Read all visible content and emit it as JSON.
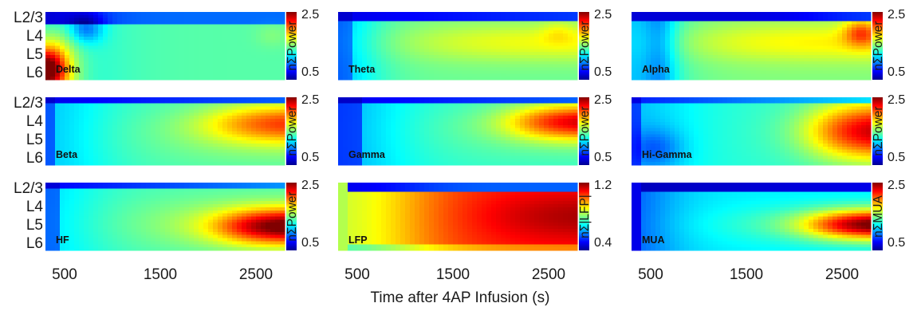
{
  "figure": {
    "xlabel": "Time after 4AP Infusion (s)",
    "layers": [
      "L2/3",
      "L4",
      "L5",
      "L6"
    ],
    "x_ticks": [
      "500",
      "1500",
      "2500"
    ],
    "x_tick_values": [
      500,
      1500,
      2500
    ],
    "x_range_s": [
      300,
      2800
    ],
    "colormap": "jet",
    "colormap_stops": [
      "#00008f",
      "#0000ff",
      "#0080ff",
      "#00ffff",
      "#80ff80",
      "#ffff00",
      "#ff8000",
      "#ff0000",
      "#800000"
    ]
  },
  "chart_data": [
    {
      "type": "heatmap",
      "label": "Delta",
      "colorbar_label": "nΣPower",
      "colorbar_ticks": [
        "2.5",
        "0.5"
      ],
      "clim": [
        0.5,
        2.5
      ],
      "rows": [
        "L2/3",
        "L4",
        "L5",
        "L6"
      ],
      "x_range_s": [
        300,
        2800
      ],
      "pattern": "delta"
    },
    {
      "type": "heatmap",
      "label": "Theta",
      "colorbar_label": "nΣPower",
      "colorbar_ticks": [
        "2.5",
        "0.5"
      ],
      "clim": [
        0.5,
        2.5
      ],
      "rows": [
        "L2/3",
        "L4",
        "L5",
        "L6"
      ],
      "x_range_s": [
        300,
        2800
      ],
      "pattern": "theta"
    },
    {
      "type": "heatmap",
      "label": "Alpha",
      "colorbar_label": "nΣPower",
      "colorbar_ticks": [
        "2.5",
        "0.5"
      ],
      "clim": [
        0.5,
        2.5
      ],
      "rows": [
        "L2/3",
        "L4",
        "L5",
        "L6"
      ],
      "x_range_s": [
        300,
        2800
      ],
      "pattern": "alpha"
    },
    {
      "type": "heatmap",
      "label": "Beta",
      "colorbar_label": "nΣPower",
      "colorbar_ticks": [
        "2.5",
        "0.5"
      ],
      "clim": [
        0.5,
        2.5
      ],
      "rows": [
        "L2/3",
        "L4",
        "L5",
        "L6"
      ],
      "x_range_s": [
        300,
        2800
      ],
      "pattern": "beta"
    },
    {
      "type": "heatmap",
      "label": "Gamma",
      "colorbar_label": "nΣPower",
      "colorbar_ticks": [
        "2.5",
        "0.5"
      ],
      "clim": [
        0.5,
        2.5
      ],
      "rows": [
        "L2/3",
        "L4",
        "L5",
        "L6"
      ],
      "x_range_s": [
        300,
        2800
      ],
      "pattern": "gamma"
    },
    {
      "type": "heatmap",
      "label": "Hi-Gamma",
      "colorbar_label": "nΣPower",
      "colorbar_ticks": [
        "2.5",
        "0.5"
      ],
      "clim": [
        0.5,
        2.5
      ],
      "rows": [
        "L2/3",
        "L4",
        "L5",
        "L6"
      ],
      "x_range_s": [
        300,
        2800
      ],
      "pattern": "higamma"
    },
    {
      "type": "heatmap",
      "label": "HF",
      "colorbar_label": "nΣPower",
      "colorbar_ticks": [
        "2.5",
        "0.5"
      ],
      "clim": [
        0.5,
        2.5
      ],
      "rows": [
        "L2/3",
        "L4",
        "L5",
        "L6"
      ],
      "x_range_s": [
        300,
        2800
      ],
      "pattern": "hf"
    },
    {
      "type": "heatmap",
      "label": "LFP",
      "colorbar_label": "nΣ|LFP|",
      "colorbar_ticks": [
        "1.2",
        "0.4"
      ],
      "clim": [
        0.4,
        1.2
      ],
      "rows": [
        "L2/3",
        "L4",
        "L5",
        "L6"
      ],
      "x_range_s": [
        300,
        2800
      ],
      "pattern": "lfp"
    },
    {
      "type": "heatmap",
      "label": "MUA",
      "colorbar_label": "nΣMUA",
      "colorbar_ticks": [
        "2.5",
        "0.5"
      ],
      "clim": [
        0.5,
        2.5
      ],
      "rows": [
        "L2/3",
        "L4",
        "L5",
        "L6"
      ],
      "x_range_s": [
        300,
        2800
      ],
      "pattern": "mua"
    }
  ]
}
